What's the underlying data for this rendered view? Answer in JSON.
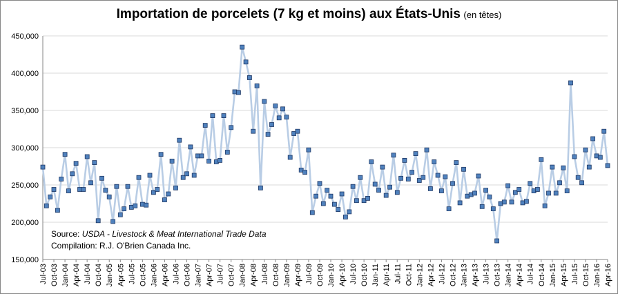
{
  "title": {
    "main": "Importation de porcelets (7 kg et moins) aux États-Unis",
    "sub": "(en têtes)"
  },
  "notes": {
    "source_prefix": "Source: ",
    "source_italic": "USDA - Livestock & Meat International Trade Data",
    "compilation": "Compilation: R.J. O'Brien Canada Inc."
  },
  "colors": {
    "line": "#b9cde5",
    "marker_fill": "#4f81bd",
    "marker_stroke": "#1f3864",
    "grid": "#d9d9d9",
    "axis": "#868686"
  },
  "chart_data": {
    "type": "line",
    "title": "Importation de porcelets (7 kg et moins) aux États-Unis (en têtes)",
    "xlabel": "",
    "ylabel": "",
    "ylim": [
      150000,
      450000
    ],
    "y_ticks": [
      "150,000",
      "200,000",
      "250,000",
      "300,000",
      "350,000",
      "400,000",
      "450,000"
    ],
    "grid": true,
    "x_tick_labels": [
      "Jul-03",
      "Oct-03",
      "Jan-04",
      "Apr-04",
      "Jul-04",
      "Oct-04",
      "Jan-05",
      "Apr-05",
      "Jul-05",
      "Oct-05",
      "Jan-06",
      "Apr-06",
      "Jul-06",
      "Oct-06",
      "Jan-07",
      "Apr-07",
      "Jul-07",
      "Oct-07",
      "Jan-08",
      "Apr-08",
      "Jul-08",
      "Oct-08",
      "Jan-09",
      "Apr-09",
      "Jul-09",
      "Oct-09",
      "Jan-10",
      "Apr-10",
      "Jul-10",
      "Oct-10",
      "Jan-11",
      "Apr-11",
      "Jul-11",
      "Oct-11",
      "Jan-12",
      "Apr-12",
      "Jul-12",
      "Oct-12",
      "Jan-13",
      "Apr-13",
      "Jul-13",
      "Oct-13",
      "Jan-14",
      "Apr-14",
      "Jul-14",
      "Oct-14",
      "Jan-15",
      "Apr-15",
      "Jul-15",
      "Oct-15",
      "Jan-16",
      "Apr-16"
    ],
    "x_start": "Jul-03",
    "x_end": "Apr-16",
    "series": [
      {
        "values": [
          274000,
          222000,
          234000,
          244000,
          216000,
          258000,
          291000,
          242000,
          265000,
          279000,
          244000,
          244000,
          288000,
          253000,
          280000,
          202000,
          259000,
          243000,
          234000,
          201000,
          248000,
          210000,
          218000,
          248000,
          220000,
          222000,
          260000,
          224000,
          223000,
          263000,
          240000,
          244000,
          291000,
          230000,
          238000,
          282000,
          246000,
          310000,
          260000,
          265000,
          301000,
          263000,
          289000,
          289000,
          330000,
          282000,
          343000,
          281000,
          283000,
          343000,
          294000,
          327000,
          375000,
          374000,
          435000,
          415000,
          394000,
          322000,
          383000,
          246000,
          362000,
          318000,
          331000,
          356000,
          340000,
          352000,
          341000,
          287000,
          319000,
          322000,
          270000,
          267000,
          297000,
          213000,
          235000,
          252000,
          225000,
          243000,
          235000,
          224000,
          217000,
          238000,
          207000,
          214000,
          248000,
          229000,
          260000,
          229000,
          232000,
          281000,
          251000,
          243000,
          274000,
          236000,
          247000,
          290000,
          240000,
          259000,
          283000,
          258000,
          267000,
          292000,
          256000,
          260000,
          297000,
          245000,
          281000,
          263000,
          242000,
          261000,
          218000,
          252000,
          280000,
          226000,
          271000,
          235000,
          237000,
          239000,
          262000,
          221000,
          243000,
          234000,
          218000,
          175000,
          225000,
          227000,
          249000,
          227000,
          240000,
          244000,
          226000,
          228000,
          252000,
          242000,
          244000,
          284000,
          222000,
          239000,
          274000,
          239000,
          253000,
          273000,
          242000,
          387000,
          288000,
          260000,
          253000,
          297000,
          274000,
          312000,
          289000,
          287000,
          322000,
          276000
        ]
      }
    ]
  }
}
